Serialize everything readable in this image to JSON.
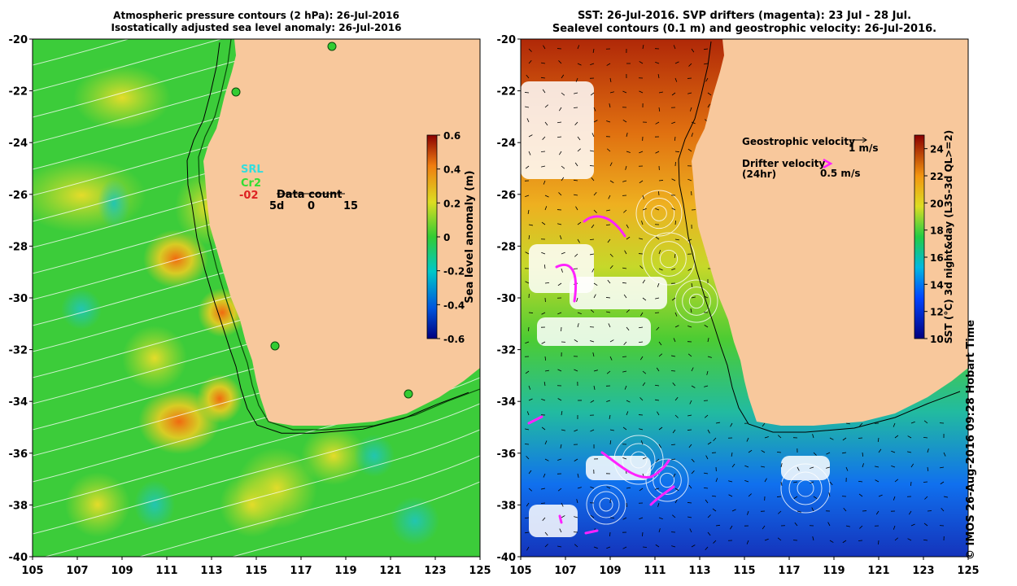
{
  "left_panel": {
    "title_line1": "Atmospheric pressure contours (2 hPa): 26-Jul-2016",
    "title_line2": "Isostatically adjusted sea level anomaly: 26-Jul-2016",
    "y_ticks": [
      "-20",
      "-22",
      "-24",
      "-26",
      "-28",
      "-30",
      "-32",
      "-34",
      "-36",
      "-38",
      "-40"
    ],
    "x_ticks": [
      "105",
      "107",
      "109",
      "111",
      "113",
      "115",
      "117",
      "119",
      "121",
      "123",
      "125"
    ],
    "colorbar": {
      "label": "Sea level anomaly (m)",
      "ticks": [
        "0.6",
        "0.4",
        "0.2",
        "0",
        "-0.2",
        "-0.4",
        "-0.6"
      ],
      "range": [
        -0.6,
        0.6
      ]
    },
    "station_labels": {
      "srl": "SRL",
      "cr2": "Cr2",
      "code": "-02"
    },
    "data_count_legend": {
      "title": "Data count",
      "labels": [
        "5d",
        "0",
        "15"
      ]
    },
    "colors": {
      "land": "#f8c89c",
      "ocean_base": "#3fcf3a",
      "coast_line": "#000000",
      "srl": "#33dddd",
      "cr2": "#33dd33",
      "code": "#dd2222"
    }
  },
  "right_panel": {
    "title_line1": "SST: 26-Jul-2016. SVP drifters (magenta): 23 Jul - 28 Jul.",
    "title_line2": "Sealevel contours (0.1 m) and geostrophic velocity: 26-Jul-2016.",
    "y_ticks": [
      "-20",
      "-22",
      "-24",
      "-26",
      "-28",
      "-30",
      "-32",
      "-34",
      "-36",
      "-38",
      "-40"
    ],
    "x_ticks": [
      "105",
      "107",
      "109",
      "111",
      "113",
      "115",
      "117",
      "119",
      "121",
      "123",
      "125"
    ],
    "colorbar": {
      "label": "SST (°C) 3d night&day (L3S-3d QL>=2)",
      "ticks": [
        "24",
        "22",
        "20",
        "18",
        "16",
        "14",
        "12",
        "10"
      ],
      "range": [
        10,
        25
      ]
    },
    "legend": {
      "geo_label": "Geostrophic velocity",
      "geo_scale": "1 m/s",
      "drifter_label": "Drifter velocity",
      "drifter_sub": "(24hr)",
      "drifter_scale": "0.5 m/s"
    },
    "colors": {
      "land": "#f8c89c",
      "drifter": "#ff22ff",
      "contour": "#ffffff"
    }
  },
  "credit": "© IMOS 26-Aug-2016 09:28 Hobart Time"
}
